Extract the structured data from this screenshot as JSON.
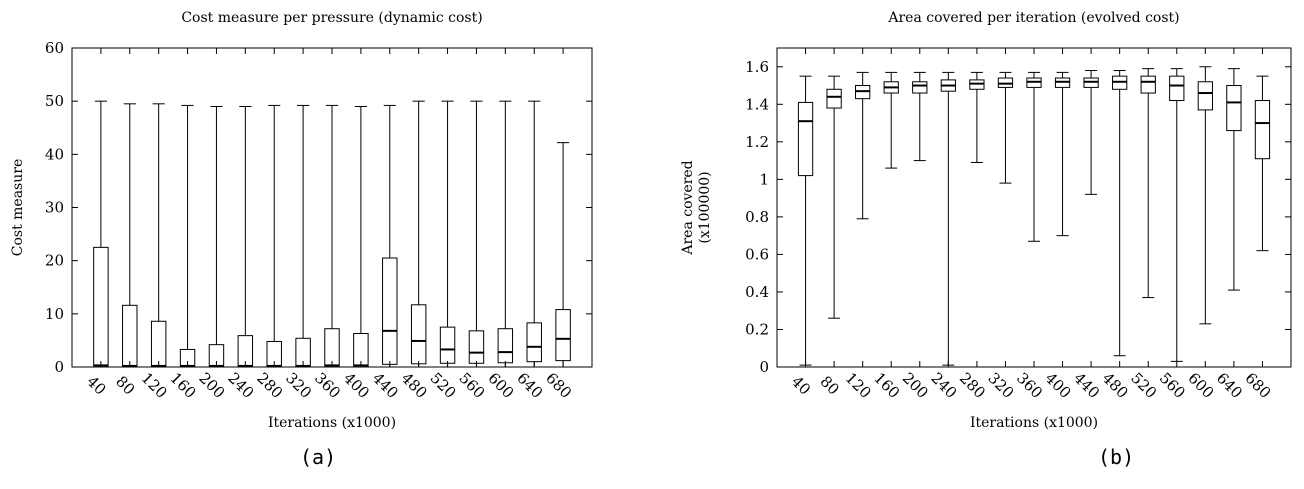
{
  "figure": {
    "caption_a": "(a)",
    "caption_b": "(b)"
  },
  "chart_data": [
    {
      "type": "boxplot",
      "title": "Cost measure per pressure (dynamic cost)",
      "xlabel": "Iterations (x1000)",
      "ylabel": "Cost measure",
      "ylim": [
        0,
        60
      ],
      "yticks": [
        "0",
        "10",
        "20",
        "30",
        "40",
        "50",
        "60"
      ],
      "grid": false,
      "categories": [
        "40",
        "80",
        "120",
        "160",
        "200",
        "240",
        "280",
        "320",
        "360",
        "400",
        "440",
        "480",
        "520",
        "560",
        "600",
        "640",
        "680"
      ],
      "boxes": [
        {
          "min": 0.0,
          "q1": 0.0,
          "median": 0.3,
          "q3": 22.5,
          "max": 50.0
        },
        {
          "min": 0.0,
          "q1": 0.0,
          "median": 0.2,
          "q3": 11.6,
          "max": 49.5
        },
        {
          "min": 0.0,
          "q1": 0.0,
          "median": 0.2,
          "q3": 8.6,
          "max": 49.5
        },
        {
          "min": 0.0,
          "q1": 0.0,
          "median": 0.2,
          "q3": 3.3,
          "max": 49.2
        },
        {
          "min": 0.0,
          "q1": 0.0,
          "median": 0.2,
          "q3": 4.2,
          "max": 49.0
        },
        {
          "min": 0.0,
          "q1": 0.0,
          "median": 0.2,
          "q3": 5.9,
          "max": 49.0
        },
        {
          "min": 0.0,
          "q1": 0.0,
          "median": 0.2,
          "q3": 4.8,
          "max": 49.2
        },
        {
          "min": 0.0,
          "q1": 0.0,
          "median": 0.2,
          "q3": 5.4,
          "max": 49.2
        },
        {
          "min": 0.0,
          "q1": 0.0,
          "median": 0.3,
          "q3": 7.2,
          "max": 49.2
        },
        {
          "min": 0.0,
          "q1": 0.0,
          "median": 0.3,
          "q3": 6.3,
          "max": 49.0
        },
        {
          "min": 0.0,
          "q1": 0.5,
          "median": 6.8,
          "q3": 20.5,
          "max": 49.2
        },
        {
          "min": 0.0,
          "q1": 0.6,
          "median": 4.9,
          "q3": 11.7,
          "max": 50.0
        },
        {
          "min": 0.0,
          "q1": 0.7,
          "median": 3.3,
          "q3": 7.5,
          "max": 50.0
        },
        {
          "min": 0.0,
          "q1": 0.7,
          "median": 2.7,
          "q3": 6.8,
          "max": 50.0
        },
        {
          "min": 0.0,
          "q1": 0.8,
          "median": 2.8,
          "q3": 7.2,
          "max": 50.0
        },
        {
          "min": 0.0,
          "q1": 1.0,
          "median": 3.8,
          "q3": 8.3,
          "max": 50.0
        },
        {
          "min": 0.0,
          "q1": 1.2,
          "median": 5.3,
          "q3": 10.8,
          "max": 42.2
        }
      ]
    },
    {
      "type": "boxplot",
      "title": "Area covered per iteration (evolved cost)",
      "xlabel": "Iterations (x1000)",
      "ylabel": "Area covered",
      "ylabel2": "(x100000)",
      "ylim": [
        0,
        1.7
      ],
      "yticks": [
        "0",
        "0.2",
        "0.4",
        "0.6",
        "0.8",
        "1",
        "1.2",
        "1.4",
        "1.6"
      ],
      "grid": false,
      "categories": [
        "40",
        "80",
        "120",
        "160",
        "200",
        "240",
        "280",
        "320",
        "360",
        "400",
        "440",
        "480",
        "520",
        "560",
        "600",
        "640",
        "680"
      ],
      "boxes": [
        {
          "min": 0.01,
          "q1": 1.02,
          "median": 1.31,
          "q3": 1.41,
          "max": 1.55
        },
        {
          "min": 0.26,
          "q1": 1.38,
          "median": 1.44,
          "q3": 1.48,
          "max": 1.55
        },
        {
          "min": 0.79,
          "q1": 1.43,
          "median": 1.47,
          "q3": 1.5,
          "max": 1.57
        },
        {
          "min": 1.06,
          "q1": 1.46,
          "median": 1.49,
          "q3": 1.52,
          "max": 1.57
        },
        {
          "min": 1.1,
          "q1": 1.46,
          "median": 1.5,
          "q3": 1.52,
          "max": 1.57
        },
        {
          "min": 0.01,
          "q1": 1.47,
          "median": 1.5,
          "q3": 1.53,
          "max": 1.57
        },
        {
          "min": 1.09,
          "q1": 1.48,
          "median": 1.51,
          "q3": 1.53,
          "max": 1.57
        },
        {
          "min": 0.98,
          "q1": 1.49,
          "median": 1.51,
          "q3": 1.54,
          "max": 1.57
        },
        {
          "min": 0.67,
          "q1": 1.49,
          "median": 1.52,
          "q3": 1.54,
          "max": 1.57
        },
        {
          "min": 0.7,
          "q1": 1.49,
          "median": 1.52,
          "q3": 1.54,
          "max": 1.57
        },
        {
          "min": 0.92,
          "q1": 1.49,
          "median": 1.52,
          "q3": 1.54,
          "max": 1.58
        },
        {
          "min": 0.06,
          "q1": 1.48,
          "median": 1.52,
          "q3": 1.55,
          "max": 1.58
        },
        {
          "min": 0.37,
          "q1": 1.46,
          "median": 1.52,
          "q3": 1.55,
          "max": 1.59
        },
        {
          "min": 0.03,
          "q1": 1.42,
          "median": 1.5,
          "q3": 1.55,
          "max": 1.59
        },
        {
          "min": 0.23,
          "q1": 1.37,
          "median": 1.46,
          "q3": 1.52,
          "max": 1.6
        },
        {
          "min": 0.41,
          "q1": 1.26,
          "median": 1.41,
          "q3": 1.5,
          "max": 1.59
        },
        {
          "min": 0.62,
          "q1": 1.11,
          "median": 1.3,
          "q3": 1.42,
          "max": 1.55
        }
      ]
    }
  ]
}
